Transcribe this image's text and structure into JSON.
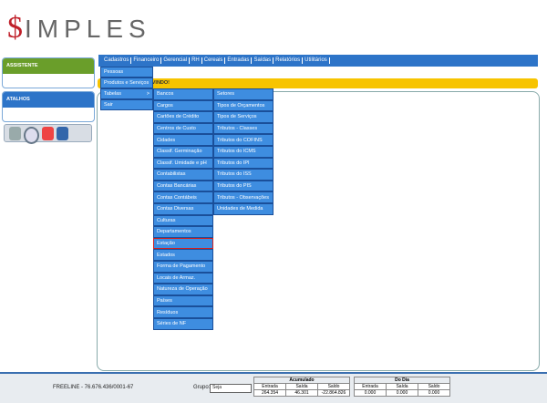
{
  "logo": {
    "symbol": "$",
    "text": "IMPLES"
  },
  "menu_bar": [
    "Cadastros",
    "Financeiro",
    "Gerencial",
    "RH",
    "Cereais",
    "Entradas",
    "Saídas",
    "Relatórios",
    "Utilitários"
  ],
  "sidebar": {
    "assistant": "ASSISTENTE",
    "shortcuts": "ATALHOS"
  },
  "welcome": "BEM VINDO!",
  "menu_level1": [
    "Pessoas",
    "Produtos e Serviços",
    "Tabelas",
    "Sair"
  ],
  "submenu_arrow": ">",
  "menu_level2": [
    "Bancos",
    "Cargos",
    "Cartões de Crédito",
    "Centros de Custo",
    "Cidades",
    "Classif. Germinação",
    "Classif. Umidade e pH",
    "Contabilistas",
    "Contas Bancárias",
    "Contas Contábeis",
    "Contas Diversas",
    "Culturas",
    "Departamentos",
    "Estação",
    "Estados",
    "Forma de Pagamento",
    "Locais de Armaz.",
    "Natureza de Operação",
    "Países",
    "Resíduos",
    "Séries de NF"
  ],
  "menu_level3": [
    "Setores",
    "Tipos de Orçamentos",
    "Tipos de Serviços",
    "Tributos - Classes",
    "Tributos do COFINS",
    "Tributos do ICMS",
    "Tributos do IPI",
    "Tributos do ISS",
    "Tributos do PIS",
    "Tributos - Observações",
    "Unidades de Medida"
  ],
  "footer": {
    "company": "FREELINE - 76.676.436/0001-67",
    "group_label": "Grupo:",
    "group_value": "Seja",
    "accumulated": {
      "title": "Acumulado",
      "headers": [
        "Entrada",
        "Saída",
        "Saldo"
      ],
      "values": [
        "264.354",
        "46.301",
        "-22.864.826"
      ]
    },
    "today": {
      "title": "Do Dia",
      "headers": [
        "Entrada",
        "Saída",
        "Saldo"
      ],
      "values": [
        "0.000",
        "0.000",
        "0.000"
      ]
    }
  }
}
